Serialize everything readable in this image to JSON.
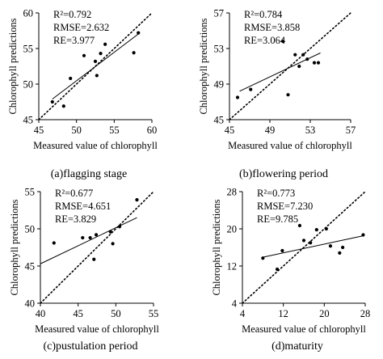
{
  "chart_data": [
    {
      "type": "scatter",
      "caption": "(a)flagging stage",
      "xlabel": "Measured value of chlorophyll",
      "ylabel": "Chlorophyll predictions",
      "xlim": [
        45,
        60
      ],
      "ylim": [
        45,
        60
      ],
      "xticks": [
        45,
        50,
        55,
        60
      ],
      "yticks": [
        45,
        50,
        55,
        60
      ],
      "stats": [
        "R²=0.792",
        "RMSE=2.632",
        "RE=3.977"
      ],
      "points": [
        [
          46.8,
          47.5
        ],
        [
          48.3,
          46.9
        ],
        [
          49.2,
          50.8
        ],
        [
          51.0,
          54.0
        ],
        [
          52.5,
          53.2
        ],
        [
          52.7,
          51.2
        ],
        [
          53.2,
          54.3
        ],
        [
          53.8,
          55.6
        ],
        [
          57.6,
          54.4
        ],
        [
          58.2,
          57.2
        ]
      ],
      "fit_line": [
        [
          46.8,
          47.9
        ],
        [
          58.4,
          57.2
        ]
      ],
      "reference_line": [
        [
          45,
          45
        ],
        [
          60,
          60
        ]
      ]
    },
    {
      "type": "scatter",
      "caption": "(b)flowering period",
      "xlabel": "Measured value of chlorophyll",
      "ylabel": "Chlorophyll predictions",
      "xlim": [
        45,
        57
      ],
      "ylim": [
        45,
        57
      ],
      "xticks": [
        45,
        49,
        53,
        57
      ],
      "yticks": [
        45,
        49,
        53,
        57
      ],
      "stats": [
        "R²=0.784",
        "RMSE=3.858",
        "RE=3.064"
      ],
      "points": [
        [
          45.8,
          47.5
        ],
        [
          47.1,
          48.4
        ],
        [
          50.3,
          53.8
        ],
        [
          50.8,
          47.8
        ],
        [
          51.5,
          52.3
        ],
        [
          51.9,
          51.0
        ],
        [
          52.3,
          52.3
        ],
        [
          52.7,
          51.8
        ],
        [
          53.4,
          51.4
        ],
        [
          53.8,
          51.4
        ]
      ],
      "fit_line": [
        [
          46.0,
          48.2
        ],
        [
          54.0,
          52.5
        ]
      ],
      "reference_line": [
        [
          45,
          45
        ],
        [
          57,
          57
        ]
      ]
    },
    {
      "type": "scatter",
      "caption": "(c)pustulation period",
      "xlabel": "Measured value of chlorophyll",
      "ylabel": "Chlorophyll predictions",
      "xlim": [
        40,
        55
      ],
      "ylim": [
        40,
        55
      ],
      "xticks": [
        40,
        45,
        50,
        55
      ],
      "yticks": [
        40,
        45,
        50,
        55
      ],
      "stats": [
        "R²=0.677",
        "RMSE=4.651",
        "RE=3.829"
      ],
      "points": [
        [
          41.8,
          48.1
        ],
        [
          45.6,
          48.8
        ],
        [
          46.6,
          48.8
        ],
        [
          47.1,
          45.9
        ],
        [
          47.4,
          49.2
        ],
        [
          49.3,
          49.6
        ],
        [
          49.6,
          48.0
        ],
        [
          50.5,
          50.3
        ],
        [
          52.8,
          53.9
        ]
      ],
      "fit_line": [
        [
          40.0,
          45.3
        ],
        [
          52.8,
          51.5
        ]
      ],
      "reference_line": [
        [
          40,
          40
        ],
        [
          55,
          55
        ]
      ]
    },
    {
      "type": "scatter",
      "caption": "(d)maturity",
      "xlabel": "Measured value of chlorophyll",
      "ylabel": "Chlorophyll predictions",
      "xlim": [
        4,
        28
      ],
      "ylim": [
        4,
        28
      ],
      "xticks": [
        4,
        12,
        20,
        28
      ],
      "yticks": [
        4,
        12,
        20,
        28
      ],
      "stats": [
        "R²=0.773",
        "RMSE=7.230",
        "RE=9.785"
      ],
      "points": [
        [
          8.0,
          13.7
        ],
        [
          10.8,
          11.3
        ],
        [
          11.8,
          15.3
        ],
        [
          15.2,
          20.7
        ],
        [
          16.0,
          17.5
        ],
        [
          17.3,
          17.0
        ],
        [
          18.5,
          19.8
        ],
        [
          20.4,
          20.0
        ],
        [
          21.2,
          16.3
        ],
        [
          23.0,
          14.8
        ],
        [
          23.6,
          16.0
        ],
        [
          27.6,
          18.7
        ]
      ],
      "fit_line": [
        [
          8.0,
          13.9
        ],
        [
          27.6,
          18.5
        ]
      ],
      "reference_line": [
        [
          4,
          4
        ],
        [
          28,
          28
        ]
      ]
    }
  ]
}
